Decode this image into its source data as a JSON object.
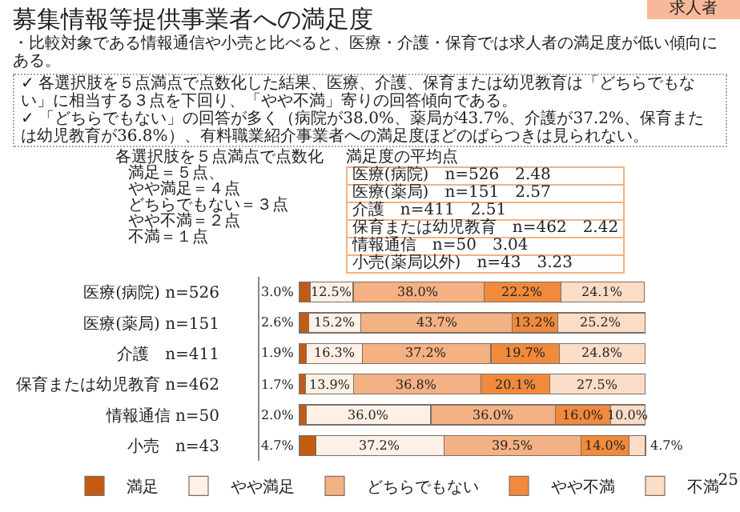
{
  "chart_data": {
    "type": "bar",
    "orientation": "horizontal",
    "stacked": true,
    "title": "募集情報等提供事業者への満足度",
    "subtitle": "・比較対象である情報通信や小売と比べると、医療・介護・保育では求人者の満足度が低い傾向にある。",
    "annotations": [
      "求人者",
      "✓ 各選択肢を５点満点で点数化した結果、医療、介護、保育または幼児教育は「どちらでもない」に相当する３点を下回り、「やや不満」寄りの回答傾向である。",
      "✓ 「どちらでもない」の回答が多く（病院が38.0%、薬局が43.7%、介護が37.2%、保育または幼児教育が36.8%）、有料職業紹介事業者への満足度ほどのばらつきは見られない。",
      "各選択肢を５点満点で点数化",
      "満足＝５点、",
      "やや満足＝４点",
      "どちらでもない＝３点",
      "やや不満＝２点",
      "不満＝１点",
      "満足度の平均点",
      "医療(病院)　n=526　2.48",
      "医療(薬局)　n=151　2.57",
      "介護　n=411　2.51",
      "保育または幼児教育　n=462　2.42",
      "情報通信　n=50　3.04",
      "小売(薬局以外)　n=43　3.23",
      "25"
    ],
    "categories": [
      "医療(病院) n=526",
      "医療(薬局) n=151",
      "介護　n=411",
      "保育または幼児教育 n=462",
      "情報通信 n=50",
      "小売　n=43"
    ],
    "series": [
      {
        "name": "満足",
        "color": "#c55a11",
        "values": [
          3.0,
          2.6,
          1.9,
          1.7,
          2.0,
          4.7
        ],
        "value_labels": [
          "3.0%",
          "2.6%",
          "1.9%",
          "1.7%",
          "2.0%",
          "4.7%"
        ]
      },
      {
        "name": "やや満足",
        "color": "#fdf0e6",
        "values": [
          12.5,
          15.2,
          16.3,
          13.9,
          36.0,
          37.2
        ],
        "value_labels": [
          "12.5%",
          "15.2%",
          "16.3%",
          "13.9%",
          "36.0%",
          "37.2%"
        ]
      },
      {
        "name": "どちらでもない",
        "color": "#f4b183",
        "values": [
          38.0,
          43.7,
          37.2,
          36.8,
          36.0,
          39.5
        ],
        "value_labels": [
          "38.0%",
          "43.7%",
          "37.2%",
          "36.8%",
          "36.0%",
          "39.5%"
        ]
      },
      {
        "name": "やや不満",
        "color": "#f08a3c",
        "values": [
          22.2,
          13.2,
          19.7,
          20.1,
          16.0,
          14.0
        ],
        "value_labels": [
          "22.2%",
          "13.2%",
          "19.7%",
          "20.1%",
          "16.0%",
          "14.0%"
        ]
      },
      {
        "name": "不満",
        "color": "#fbdcc6",
        "values": [
          24.1,
          25.2,
          24.8,
          27.5,
          10.0,
          4.7
        ],
        "value_labels": [
          "24.1%",
          "25.2%",
          "24.8%",
          "27.5%",
          "10.0%",
          "4.7%"
        ]
      }
    ],
    "legend": "bottom",
    "tick_labels": "y"
  }
}
